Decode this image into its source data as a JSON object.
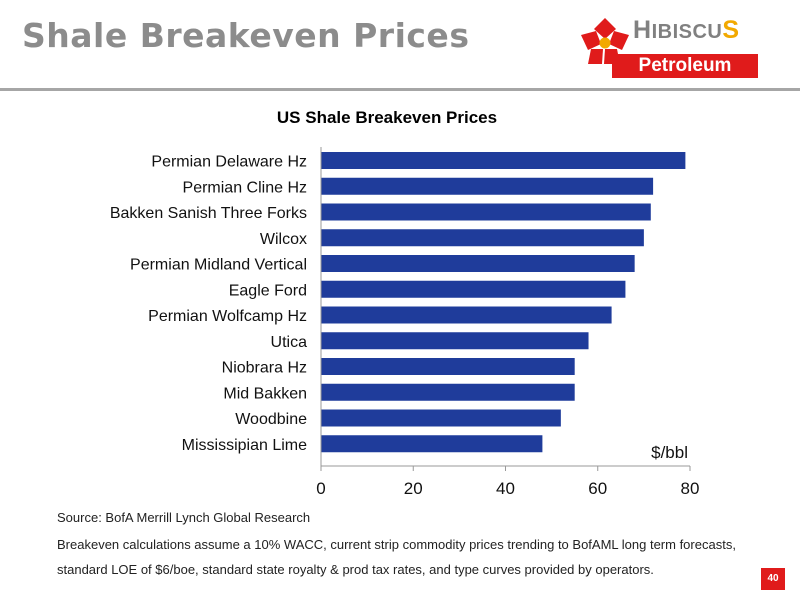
{
  "slide": {
    "title": "Shale Breakeven Prices",
    "page_number": "40"
  },
  "logo": {
    "name_first": "H",
    "name_mid": "IBISCU",
    "name_last": "S",
    "name_sub": "Petroleum",
    "colors": {
      "red": "#e01b1b",
      "yellow": "#f2a900",
      "gray": "#808080"
    }
  },
  "chart_data": {
    "type": "bar",
    "orientation": "horizontal",
    "title": "US Shale Breakeven Prices",
    "unit_label": "$/bbl",
    "categories": [
      "Permian Delaware Hz",
      "Permian Cline Hz",
      "Bakken Sanish Three Forks",
      "Wilcox",
      "Permian Midland Vertical",
      "Eagle Ford",
      "Permian Wolfcamp Hz",
      "Utica",
      "Niobrara Hz",
      "Mid Bakken",
      "Woodbine",
      "Mississipian Lime"
    ],
    "values": [
      79,
      72,
      71.5,
      70,
      68,
      66,
      63,
      58,
      55,
      55,
      52,
      48
    ],
    "xlim": [
      0,
      80
    ],
    "xticks": [
      "0",
      "20",
      "40",
      "60",
      "80"
    ],
    "grid": false,
    "bar_color": "#1f3c9b"
  },
  "footer": {
    "source": "Source: BofA Merrill Lynch Global Research",
    "note": "Breakeven calculations assume a 10% WACC, current strip commodity prices trending to BofAML long term forecasts, standard LOE of $6/boe, standard state royalty & prod tax rates, and type curves provided by operators."
  }
}
